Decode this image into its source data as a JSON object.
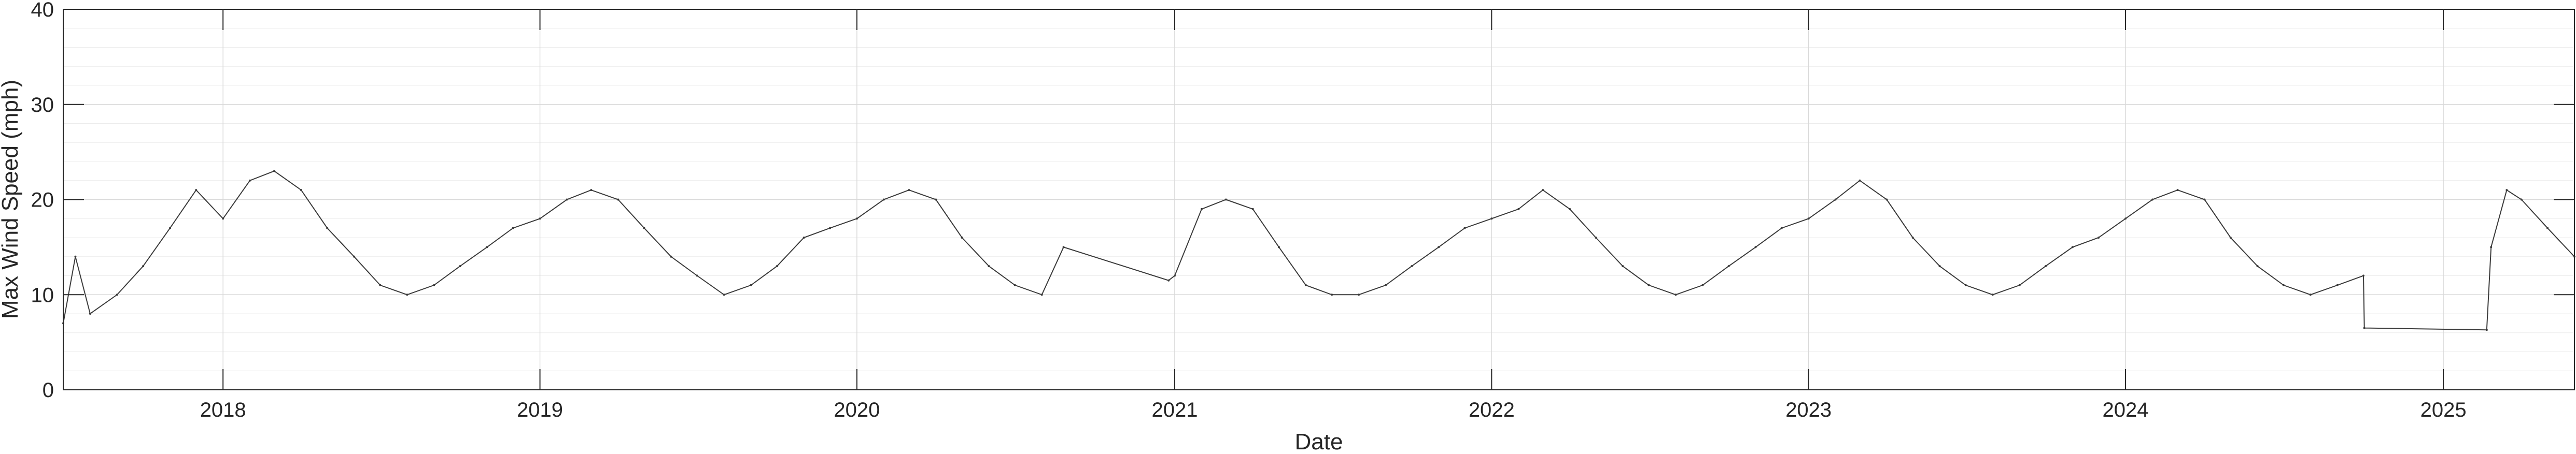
{
  "chart_data": {
    "type": "line",
    "xlabel": "Date",
    "ylabel": "Max Wind Speed (mph)",
    "xlim": [
      "2017-07-01",
      "2025-06-01"
    ],
    "ylim": [
      0,
      40
    ],
    "yticks": [
      0,
      10,
      20,
      30,
      40
    ],
    "xticks": [
      {
        "date": "2018-01-01",
        "label": "2018"
      },
      {
        "date": "2019-01-01",
        "label": "2019"
      },
      {
        "date": "2020-01-01",
        "label": "2020"
      },
      {
        "date": "2021-01-01",
        "label": "2021"
      },
      {
        "date": "2022-01-01",
        "label": "2022"
      },
      {
        "date": "2023-01-01",
        "label": "2023"
      },
      {
        "date": "2024-01-01",
        "label": "2024"
      },
      {
        "date": "2025-01-01",
        "label": "2025"
      }
    ],
    "grid": true,
    "minor_grid": true,
    "line_color": "#3a3a3a",
    "series": [
      {
        "points": [
          {
            "x": "2017-07-01",
            "y": 7
          },
          {
            "x": "2017-07-15",
            "y": 14
          },
          {
            "x": "2017-08-01",
            "y": 8
          },
          {
            "x": "2017-09-01",
            "y": 10
          },
          {
            "x": "2017-10-01",
            "y": 13
          },
          {
            "x": "2017-11-01",
            "y": 17
          },
          {
            "x": "2017-12-01",
            "y": 21
          },
          {
            "x": "2018-01-01",
            "y": 18
          },
          {
            "x": "2018-02-01",
            "y": 22
          },
          {
            "x": "2018-03-01",
            "y": 23
          },
          {
            "x": "2018-04-01",
            "y": 21
          },
          {
            "x": "2018-05-01",
            "y": 17
          },
          {
            "x": "2018-06-01",
            "y": 14
          },
          {
            "x": "2018-07-01",
            "y": 11
          },
          {
            "x": "2018-08-01",
            "y": 10
          },
          {
            "x": "2018-09-01",
            "y": 11
          },
          {
            "x": "2018-10-01",
            "y": 13
          },
          {
            "x": "2018-11-01",
            "y": 15
          },
          {
            "x": "2018-12-01",
            "y": 17
          },
          {
            "x": "2019-01-01",
            "y": 18
          },
          {
            "x": "2019-02-01",
            "y": 20
          },
          {
            "x": "2019-03-01",
            "y": 21
          },
          {
            "x": "2019-04-01",
            "y": 20
          },
          {
            "x": "2019-05-01",
            "y": 17
          },
          {
            "x": "2019-06-01",
            "y": 14
          },
          {
            "x": "2019-07-01",
            "y": 12
          },
          {
            "x": "2019-08-01",
            "y": 10
          },
          {
            "x": "2019-09-01",
            "y": 11
          },
          {
            "x": "2019-10-01",
            "y": 13
          },
          {
            "x": "2019-11-01",
            "y": 16
          },
          {
            "x": "2019-12-01",
            "y": 17
          },
          {
            "x": "2020-01-01",
            "y": 18
          },
          {
            "x": "2020-02-01",
            "y": 20
          },
          {
            "x": "2020-03-01",
            "y": 21
          },
          {
            "x": "2020-04-01",
            "y": 20
          },
          {
            "x": "2020-05-01",
            "y": 16
          },
          {
            "x": "2020-06-01",
            "y": 13
          },
          {
            "x": "2020-07-01",
            "y": 11
          },
          {
            "x": "2020-08-01",
            "y": 10
          },
          {
            "x": "2020-08-26",
            "y": 15
          },
          {
            "x": "2020-12-25",
            "y": 11.5
          },
          {
            "x": "2021-01-01",
            "y": 12
          },
          {
            "x": "2021-02-01",
            "y": 19
          },
          {
            "x": "2021-03-01",
            "y": 20
          },
          {
            "x": "2021-04-01",
            "y": 19
          },
          {
            "x": "2021-05-01",
            "y": 15
          },
          {
            "x": "2021-06-01",
            "y": 11
          },
          {
            "x": "2021-07-01",
            "y": 10
          },
          {
            "x": "2021-08-01",
            "y": 10
          },
          {
            "x": "2021-09-01",
            "y": 11
          },
          {
            "x": "2021-10-01",
            "y": 13
          },
          {
            "x": "2021-11-01",
            "y": 15
          },
          {
            "x": "2021-12-01",
            "y": 17
          },
          {
            "x": "2022-01-01",
            "y": 18
          },
          {
            "x": "2022-02-01",
            "y": 19
          },
          {
            "x": "2022-03-01",
            "y": 21
          },
          {
            "x": "2022-04-01",
            "y": 19
          },
          {
            "x": "2022-05-01",
            "y": 16
          },
          {
            "x": "2022-06-01",
            "y": 13
          },
          {
            "x": "2022-07-01",
            "y": 11
          },
          {
            "x": "2022-08-01",
            "y": 10
          },
          {
            "x": "2022-09-01",
            "y": 11
          },
          {
            "x": "2022-10-01",
            "y": 13
          },
          {
            "x": "2022-11-01",
            "y": 15
          },
          {
            "x": "2022-12-01",
            "y": 17
          },
          {
            "x": "2023-01-01",
            "y": 18
          },
          {
            "x": "2023-02-01",
            "y": 20
          },
          {
            "x": "2023-03-01",
            "y": 22
          },
          {
            "x": "2023-04-01",
            "y": 20
          },
          {
            "x": "2023-05-01",
            "y": 16
          },
          {
            "x": "2023-06-01",
            "y": 13
          },
          {
            "x": "2023-07-01",
            "y": 11
          },
          {
            "x": "2023-08-01",
            "y": 10
          },
          {
            "x": "2023-09-01",
            "y": 11
          },
          {
            "x": "2023-10-01",
            "y": 13
          },
          {
            "x": "2023-11-01",
            "y": 15
          },
          {
            "x": "2023-12-01",
            "y": 16
          },
          {
            "x": "2024-01-01",
            "y": 18
          },
          {
            "x": "2024-02-01",
            "y": 20
          },
          {
            "x": "2024-03-01",
            "y": 21
          },
          {
            "x": "2024-04-01",
            "y": 20
          },
          {
            "x": "2024-05-01",
            "y": 16
          },
          {
            "x": "2024-06-01",
            "y": 13
          },
          {
            "x": "2024-07-01",
            "y": 11
          },
          {
            "x": "2024-08-01",
            "y": 10
          },
          {
            "x": "2024-09-01",
            "y": 11
          },
          {
            "x": "2024-10-01",
            "y": 12
          },
          {
            "x": "2024-10-02",
            "y": 6.5
          },
          {
            "x": "2025-02-20",
            "y": 6.3
          },
          {
            "x": "2025-02-25",
            "y": 15
          },
          {
            "x": "2025-03-15",
            "y": 21
          },
          {
            "x": "2025-04-01",
            "y": 20
          },
          {
            "x": "2025-05-01",
            "y": 17
          },
          {
            "x": "2025-06-01",
            "y": 14
          }
        ]
      }
    ]
  }
}
